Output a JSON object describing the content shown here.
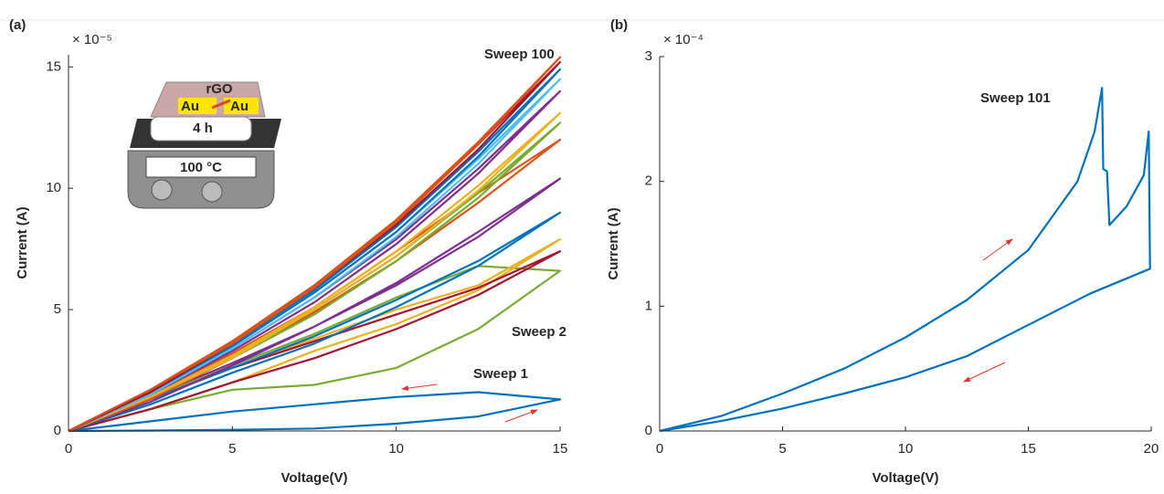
{
  "chart_data": [
    {
      "type": "line",
      "panel_label": "(a)",
      "x_label": "Voltage(V)",
      "y_label": "Current (A)",
      "y_multiplier": "× 10⁻⁵",
      "xlim": [
        0,
        15
      ],
      "ylim": [
        0,
        15.5
      ],
      "xticks": [
        0,
        5,
        10,
        15
      ],
      "yticks": [
        0,
        5,
        10,
        15
      ],
      "x": [
        0,
        2.5,
        5,
        7.5,
        10,
        12.5,
        15,
        12.5,
        10,
        7.5,
        5,
        2.5,
        0
      ],
      "series": [
        {
          "color": "#0072BD",
          "values": [
            0,
            0.02,
            0.05,
            0.1,
            0.3,
            0.6,
            1.3,
            1.6,
            1.4,
            1.1,
            0.8,
            0.4,
            0
          ]
        },
        {
          "color": "#77AC30",
          "values": [
            0,
            0.9,
            1.7,
            1.9,
            2.6,
            4.2,
            6.6,
            6.8,
            5.5,
            4.0,
            2.7,
            1.3,
            0
          ]
        },
        {
          "color": "#EDB120",
          "values": [
            0,
            0.9,
            2.0,
            3.3,
            4.4,
            5.8,
            7.9,
            6.0,
            5.0,
            3.8,
            2.6,
            1.3,
            0
          ]
        },
        {
          "color": "#A2142F",
          "values": [
            0,
            0.9,
            2.0,
            3.0,
            4.2,
            5.6,
            7.4,
            5.9,
            4.8,
            3.7,
            2.6,
            1.3,
            0
          ]
        },
        {
          "color": "#0072BD",
          "values": [
            0,
            1.1,
            2.4,
            3.6,
            5.1,
            6.8,
            9.0,
            7.0,
            5.4,
            3.9,
            2.6,
            1.3,
            0
          ]
        },
        {
          "color": "#7E2F8E",
          "values": [
            0,
            1.2,
            2.7,
            4.3,
            6.0,
            8.0,
            10.4,
            8.2,
            6.1,
            4.3,
            2.8,
            1.4,
            0
          ]
        },
        {
          "color": "#D95319",
          "values": [
            0,
            1.3,
            3.0,
            4.9,
            7.0,
            9.4,
            12.0,
            9.8,
            7.4,
            5.1,
            3.2,
            1.5,
            0
          ]
        },
        {
          "color": "#77AC30",
          "values": [
            0,
            1.4,
            3.1,
            5.0,
            7.2,
            9.8,
            12.7,
            9.6,
            7.0,
            4.8,
            3.0,
            1.4,
            0
          ]
        },
        {
          "color": "#EDB120",
          "values": [
            0,
            1.4,
            3.1,
            5.1,
            7.4,
            10.1,
            13.1,
            9.9,
            7.2,
            5.0,
            3.0,
            1.4,
            0
          ]
        },
        {
          "color": "#7E2F8E",
          "values": [
            0,
            1.5,
            3.4,
            5.5,
            7.9,
            10.8,
            14.0,
            10.6,
            7.7,
            5.3,
            3.3,
            1.5,
            0
          ]
        },
        {
          "color": "#4DBEEE",
          "values": [
            0,
            1.6,
            3.5,
            5.7,
            8.2,
            11.2,
            14.5,
            11.0,
            8.0,
            5.5,
            3.4,
            1.5,
            0
          ]
        },
        {
          "color": "#0072BD",
          "values": [
            0,
            1.6,
            3.6,
            5.8,
            8.4,
            11.5,
            14.9,
            11.3,
            8.2,
            5.7,
            3.5,
            1.6,
            0
          ]
        },
        {
          "color": "#A2142F",
          "values": [
            0,
            1.7,
            3.7,
            6.0,
            8.6,
            11.8,
            15.2,
            11.6,
            8.5,
            5.9,
            3.6,
            1.6,
            0
          ]
        },
        {
          "color": "#D95319",
          "values": [
            0,
            1.7,
            3.7,
            6.0,
            8.7,
            11.9,
            15.4,
            11.8,
            8.6,
            5.9,
            3.6,
            1.7,
            0
          ]
        }
      ],
      "annotations": [
        "Sweep 100",
        "Sweep 2",
        "Sweep 1"
      ],
      "inset": {
        "left_pad": "Au",
        "right_pad": "Au",
        "material": "rGO",
        "time": "4 h",
        "temperature": "100 °C"
      }
    },
    {
      "type": "line",
      "panel_label": "(b)",
      "x_label": "Voltage(V)",
      "y_label": "Current (A)",
      "y_multiplier": "× 10⁻⁴",
      "xlim": [
        0,
        20
      ],
      "ylim": [
        0,
        3
      ],
      "xticks": [
        0,
        5,
        10,
        15,
        20
      ],
      "yticks": [
        0,
        1,
        2,
        3
      ],
      "x": [
        0,
        2.5,
        5,
        7.5,
        10,
        12.5,
        15,
        17,
        17.7,
        18,
        18.05,
        18.2,
        18.3,
        19,
        19.7,
        19.9,
        19.95,
        17.5,
        15,
        12.5,
        10,
        7.5,
        5,
        2.5,
        0
      ],
      "series": [
        {
          "color": "#0072BD",
          "values": [
            0,
            0.12,
            0.3,
            0.5,
            0.75,
            1.05,
            1.45,
            2.0,
            2.4,
            2.75,
            2.1,
            2.08,
            1.65,
            1.8,
            2.05,
            2.4,
            1.3,
            1.1,
            0.85,
            0.6,
            0.43,
            0.3,
            0.18,
            0.08,
            0
          ]
        }
      ],
      "annotations": [
        "Sweep 101"
      ]
    }
  ]
}
